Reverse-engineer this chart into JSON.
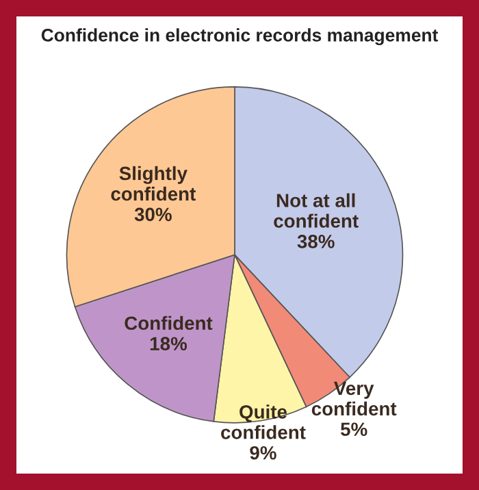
{
  "chart_data": {
    "type": "pie",
    "title": "Confidence in electronic records management",
    "categories": [
      "Not at all confident",
      "Very confident",
      "Quite confident",
      "Confident",
      "Slightly confident"
    ],
    "values": [
      38,
      5,
      9,
      18,
      30
    ],
    "value_labels": [
      "38%",
      "5%",
      "9%",
      "18%",
      "30%"
    ],
    "colors": [
      "#c3cbea",
      "#f28a78",
      "#fff5a8",
      "#bf95c9",
      "#fdc894"
    ]
  }
}
